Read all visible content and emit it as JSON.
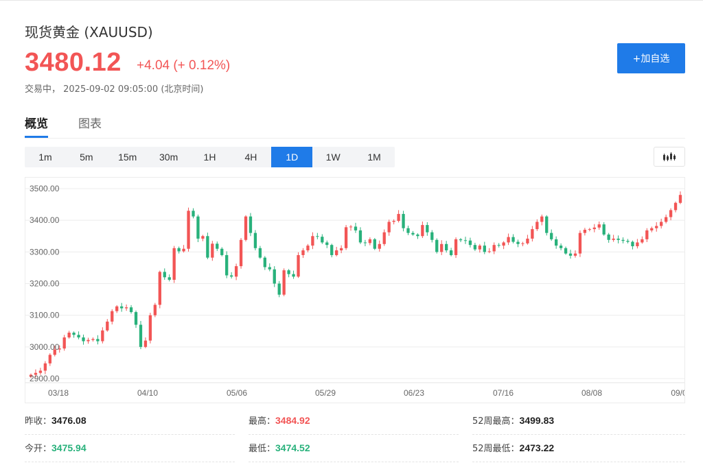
{
  "header": {
    "title": "现货黄金 (XAUUSD)",
    "price": "3480.12",
    "change": "+4.04 (+ 0.12%)",
    "status": "交易中， 2025-09-02 09:05:00 (北京时间)",
    "add_button": "+加自选"
  },
  "tabs": [
    {
      "label": "概览",
      "active": true
    },
    {
      "label": "图表",
      "active": false
    }
  ],
  "timeframes": [
    {
      "label": "1m",
      "active": false
    },
    {
      "label": "5m",
      "active": false
    },
    {
      "label": "15m",
      "active": false
    },
    {
      "label": "30m",
      "active": false
    },
    {
      "label": "1H",
      "active": false
    },
    {
      "label": "4H",
      "active": false
    },
    {
      "label": "1D",
      "active": true
    },
    {
      "label": "1W",
      "active": false
    },
    {
      "label": "1M",
      "active": false
    }
  ],
  "chart_type_icon": "candlestick-icon",
  "colors": {
    "up": "#f25555",
    "down": "#28b17b",
    "accent": "#1f7be8"
  },
  "chart_data": {
    "type": "candlestick",
    "y_ticks": [
      "3500.00",
      "3400.00",
      "3300.00",
      "3200.00",
      "3100.00",
      "3000.00",
      "2900.00"
    ],
    "x_ticks": [
      "03/18",
      "04/10",
      "05/06",
      "05/29",
      "06/23",
      "07/16",
      "08/08",
      "09/0"
    ],
    "ylim": [
      2900,
      3500
    ],
    "grid": true,
    "closes": [
      2912,
      2918,
      2925,
      2948,
      2975,
      2992,
      2995,
      3030,
      3045,
      3038,
      3030,
      3018,
      3022,
      3025,
      3018,
      3052,
      3080,
      3113,
      3128,
      3122,
      3125,
      3110,
      3070,
      3000,
      3020,
      3100,
      3133,
      3237,
      3220,
      3212,
      3312,
      3302,
      3310,
      3430,
      3412,
      3342,
      3350,
      3282,
      3326,
      3310,
      3290,
      3226,
      3222,
      3255,
      3338,
      3412,
      3360,
      3312,
      3282,
      3252,
      3245,
      3200,
      3165,
      3242,
      3230,
      3222,
      3290,
      3305,
      3320,
      3350,
      3348,
      3330,
      3322,
      3290,
      3305,
      3312,
      3378,
      3380,
      3368,
      3330,
      3328,
      3340,
      3310,
      3325,
      3362,
      3395,
      3398,
      3420,
      3375,
      3360,
      3355,
      3350,
      3385,
      3362,
      3338,
      3300,
      3325,
      3305,
      3290,
      3340,
      3337,
      3336,
      3322,
      3308,
      3320,
      3300,
      3302,
      3322,
      3320,
      3330,
      3347,
      3332,
      3325,
      3327,
      3342,
      3372,
      3395,
      3412,
      3360,
      3340,
      3320,
      3312,
      3295,
      3288,
      3295,
      3360,
      3370,
      3372,
      3377,
      3387,
      3355,
      3338,
      3342,
      3338,
      3335,
      3332,
      3318,
      3330,
      3340,
      3368,
      3375,
      3382,
      3395,
      3410,
      3432,
      3455,
      3480
    ]
  },
  "stats": [
    {
      "label": "昨收：",
      "value": "3476.08",
      "color": "dark"
    },
    {
      "label": "最高：",
      "value": "3484.92",
      "color": "red"
    },
    {
      "label": "52周最高：",
      "value": "3499.83",
      "color": "dark"
    },
    {
      "label": "今开：",
      "value": "3475.94",
      "color": "green"
    },
    {
      "label": "最低：",
      "value": "3474.52",
      "color": "green"
    },
    {
      "label": "52周最低：",
      "value": "2473.22",
      "color": "dark"
    }
  ]
}
